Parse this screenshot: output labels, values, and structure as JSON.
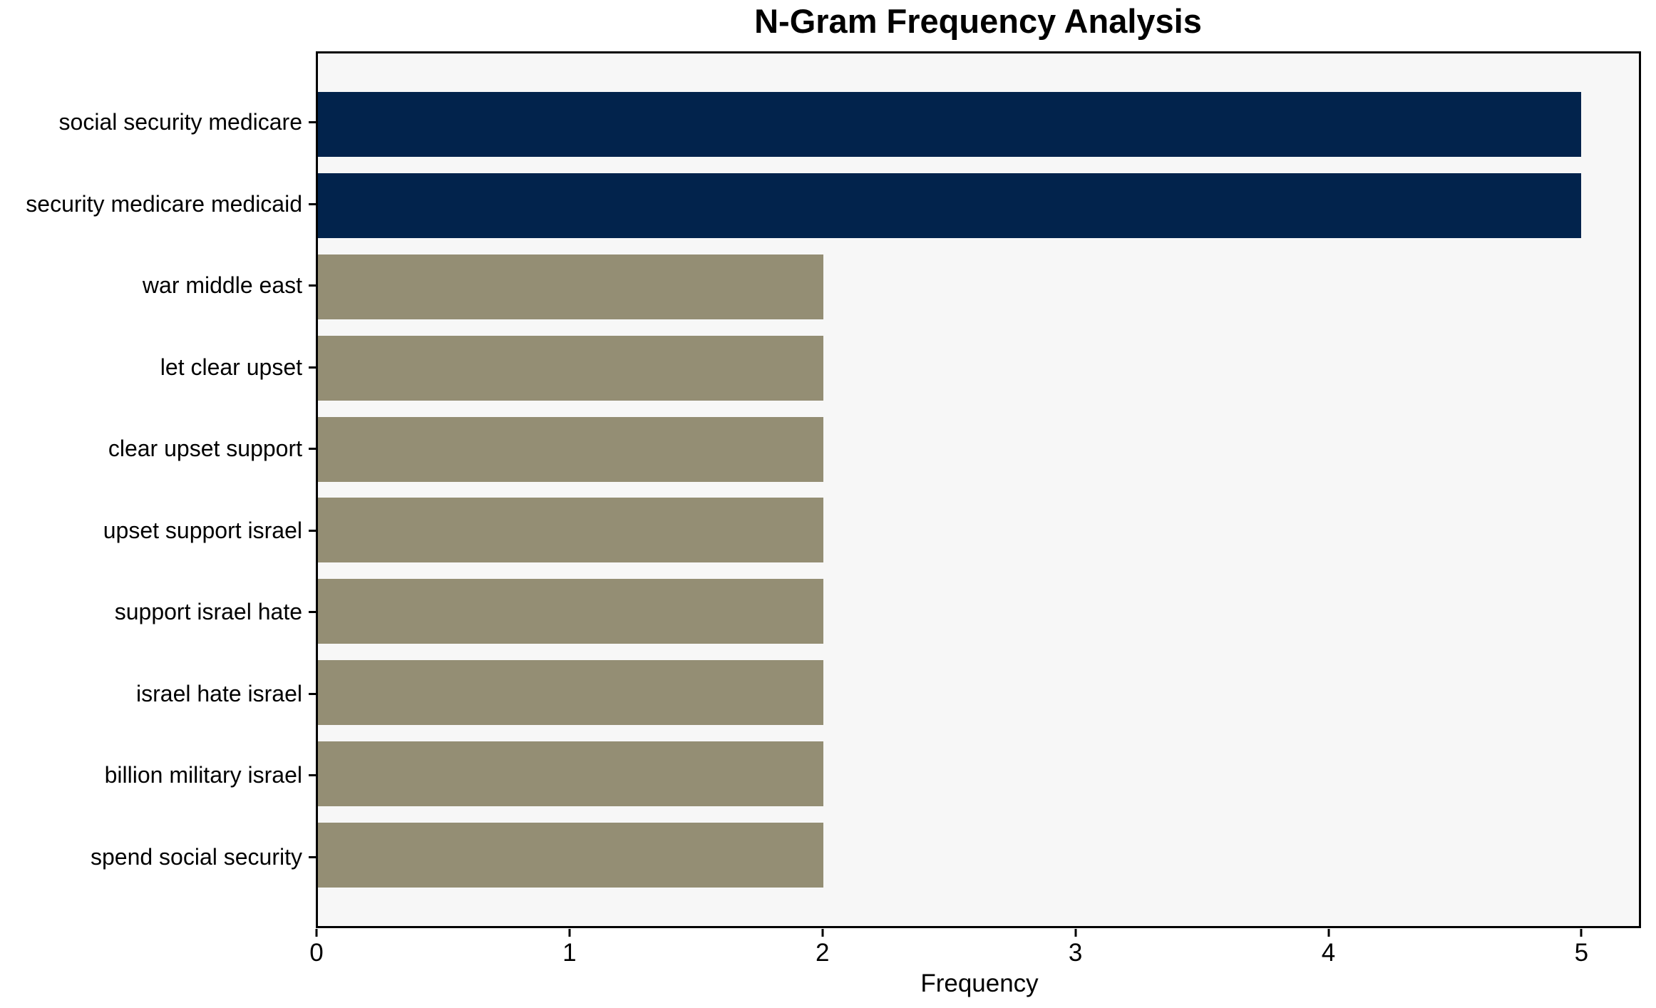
{
  "figure": {
    "background": "#ffffff",
    "plot_background": "#f7f7f7",
    "axis_color": "#000000",
    "text_color": "#000000"
  },
  "chart_data": {
    "type": "bar",
    "orientation": "horizontal",
    "title": "N-Gram Frequency Analysis",
    "xlabel": "Frequency",
    "ylabel": "",
    "categories": [
      "social security medicare",
      "security medicare medicaid",
      "war middle east",
      "let clear upset",
      "clear upset support",
      "upset support israel",
      "support israel hate",
      "israel hate israel",
      "billion military israel",
      "spend social security"
    ],
    "values": [
      5,
      5,
      2,
      2,
      2,
      2,
      2,
      2,
      2,
      2
    ],
    "bar_colors": [
      "#02234c",
      "#02234c",
      "#948e74",
      "#948e74",
      "#948e74",
      "#948e74",
      "#948e74",
      "#948e74",
      "#948e74",
      "#948e74"
    ],
    "highlight_color": "#02234c",
    "base_color": "#948e74",
    "xlim": [
      0,
      5.23
    ],
    "xticks": [
      0,
      1,
      2,
      3,
      4,
      5
    ],
    "grid": false,
    "legend": false
  }
}
